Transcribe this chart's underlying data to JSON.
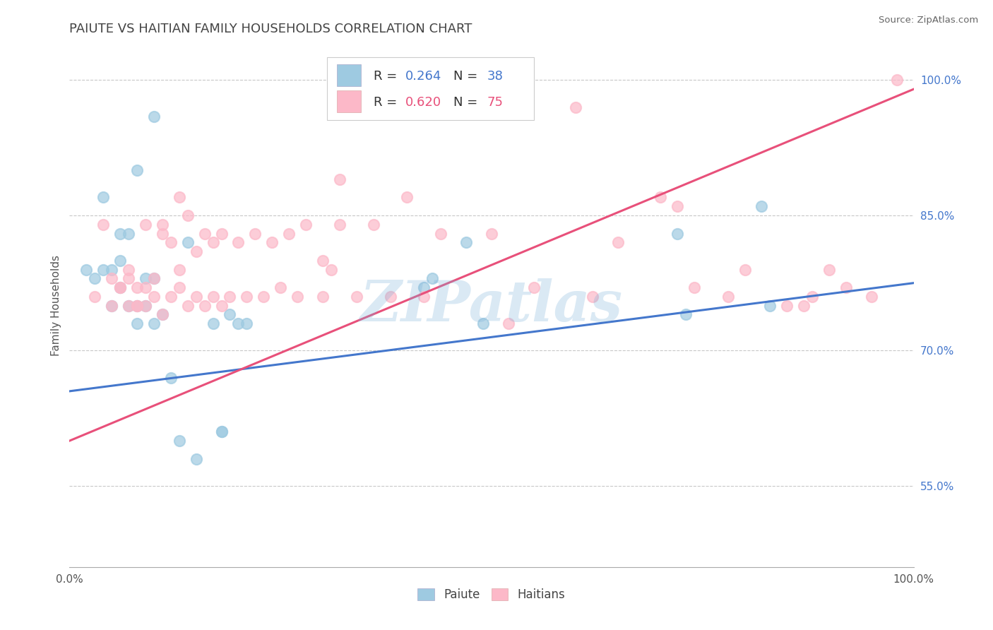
{
  "title": "PAIUTE VS HAITIAN FAMILY HOUSEHOLDS CORRELATION CHART",
  "source": "Source: ZipAtlas.com",
  "ylabel": "Family Households",
  "paiute_color": "#9ecae1",
  "haitian_color": "#fcb8c8",
  "paiute_line_color": "#4477cc",
  "haitian_line_color": "#e8507a",
  "watermark": "ZIPatlas",
  "xlim": [
    0.0,
    1.0
  ],
  "ylim": [
    0.46,
    1.04
  ],
  "yticks": [
    0.55,
    0.7,
    0.85,
    1.0
  ],
  "ytick_labels": [
    "55.0%",
    "70.0%",
    "85.0%",
    "100.0%"
  ],
  "paiute_x": [
    0.02,
    0.03,
    0.04,
    0.05,
    0.05,
    0.06,
    0.06,
    0.07,
    0.07,
    0.08,
    0.08,
    0.09,
    0.09,
    0.1,
    0.1,
    0.11,
    0.12,
    0.13,
    0.14,
    0.15,
    0.17,
    0.18,
    0.19,
    0.2,
    0.42,
    0.43,
    0.47,
    0.49,
    0.72,
    0.73,
    0.82,
    0.83,
    0.06,
    0.08,
    0.1,
    0.18,
    0.21,
    0.04
  ],
  "paiute_y": [
    0.79,
    0.78,
    0.87,
    0.79,
    0.75,
    0.77,
    0.8,
    0.75,
    0.83,
    0.75,
    0.73,
    0.78,
    0.75,
    0.73,
    0.78,
    0.74,
    0.67,
    0.6,
    0.82,
    0.58,
    0.73,
    0.61,
    0.74,
    0.73,
    0.77,
    0.78,
    0.82,
    0.73,
    0.83,
    0.74,
    0.86,
    0.75,
    0.83,
    0.9,
    0.96,
    0.61,
    0.73,
    0.79
  ],
  "haitian_x": [
    0.04,
    0.05,
    0.05,
    0.06,
    0.07,
    0.07,
    0.08,
    0.08,
    0.09,
    0.09,
    0.1,
    0.11,
    0.11,
    0.12,
    0.12,
    0.13,
    0.13,
    0.14,
    0.14,
    0.15,
    0.15,
    0.16,
    0.16,
    0.17,
    0.17,
    0.18,
    0.18,
    0.19,
    0.2,
    0.22,
    0.24,
    0.25,
    0.26,
    0.27,
    0.28,
    0.3,
    0.3,
    0.31,
    0.32,
    0.34,
    0.36,
    0.38,
    0.4,
    0.42,
    0.44,
    0.47,
    0.5,
    0.52,
    0.55,
    0.6,
    0.62,
    0.65,
    0.7,
    0.72,
    0.74,
    0.78,
    0.8,
    0.85,
    0.87,
    0.88,
    0.9,
    0.92,
    0.95,
    0.98,
    0.06,
    0.07,
    0.08,
    0.09,
    0.1,
    0.11,
    0.13,
    0.21,
    0.23,
    0.32,
    0.03
  ],
  "haitian_y": [
    0.84,
    0.75,
    0.78,
    0.77,
    0.75,
    0.79,
    0.75,
    0.77,
    0.75,
    0.84,
    0.76,
    0.74,
    0.83,
    0.76,
    0.82,
    0.77,
    0.79,
    0.75,
    0.85,
    0.76,
    0.81,
    0.75,
    0.83,
    0.76,
    0.82,
    0.75,
    0.83,
    0.76,
    0.82,
    0.83,
    0.82,
    0.77,
    0.83,
    0.76,
    0.84,
    0.76,
    0.8,
    0.79,
    0.84,
    0.76,
    0.84,
    0.76,
    0.87,
    0.76,
    0.83,
    0.99,
    0.83,
    0.73,
    0.77,
    0.97,
    0.76,
    0.82,
    0.87,
    0.86,
    0.77,
    0.76,
    0.79,
    0.75,
    0.75,
    0.76,
    0.79,
    0.77,
    0.76,
    1.0,
    0.77,
    0.78,
    0.75,
    0.77,
    0.78,
    0.84,
    0.87,
    0.76,
    0.76,
    0.89,
    0.76
  ],
  "paiute_trend_x": [
    0.0,
    1.0
  ],
  "paiute_trend_y": [
    0.655,
    0.775
  ],
  "haitian_trend_x": [
    0.0,
    1.0
  ],
  "haitian_trend_y": [
    0.6,
    0.99
  ],
  "bg_color": "#ffffff",
  "grid_color": "#c8c8c8",
  "title_color": "#444444",
  "watermark_color": "#7ab0d8",
  "watermark_alpha": 0.28,
  "legend_r1": "R = 0.264",
  "legend_n1": "N = 38",
  "legend_r2": "R = 0.620",
  "legend_n2": "N = 75",
  "legend_label1": "Paiute",
  "legend_label2": "Haitians"
}
